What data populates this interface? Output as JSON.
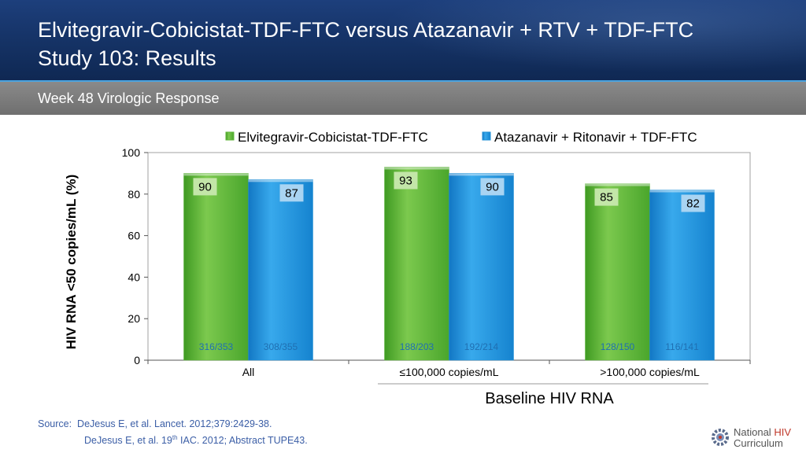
{
  "header": {
    "title_line1": "Elvitegravir-Cobicistat-TDF-FTC versus Atazanavir + RTV + TDF-FTC",
    "title_line2": "Study 103: Results",
    "subtitle": "Week 48 Virologic Response"
  },
  "footer": {
    "source_label": "Source:",
    "source_ref1": "DeJesus E, et al. Lancet. 2012;379:2429-38.",
    "source_ref2_pre": "DeJesus E, et al. 19",
    "source_ref2_sup": "th",
    "source_ref2_post": " IAC. 2012; Abstract TUPE43."
  },
  "logo": {
    "line1_a": "National ",
    "line1_b": "HIV",
    "line2": "Curriculum"
  },
  "colors": {
    "series1": "#5fb53a",
    "series2": "#1f8fd6",
    "label_box1": "#c3e6a8",
    "label_box2": "#a9d4f2",
    "count_text": "#1f6fb2"
  },
  "chart_data": {
    "type": "bar",
    "ylabel": "HIV RNA <50 copies/mL (%)",
    "xlabel": "Baseline HIV RNA",
    "ylim": [
      0,
      100
    ],
    "yticks": [
      0,
      20,
      40,
      60,
      80,
      100
    ],
    "grid": false,
    "legend_position": "top",
    "categories": [
      "All",
      "≤100,000 copies/mL",
      ">100,000 copies/mL"
    ],
    "series": [
      {
        "name": "Elvitegravir-Cobicistat-TDF-FTC",
        "values": [
          90,
          93,
          85
        ],
        "counts": [
          "316/353",
          "188/203",
          "128/150"
        ]
      },
      {
        "name": "Atazanavir + Ritonavir + TDF-FTC",
        "values": [
          87,
          90,
          82
        ],
        "counts": [
          "308/355",
          "192/214",
          "116/141"
        ]
      }
    ]
  }
}
